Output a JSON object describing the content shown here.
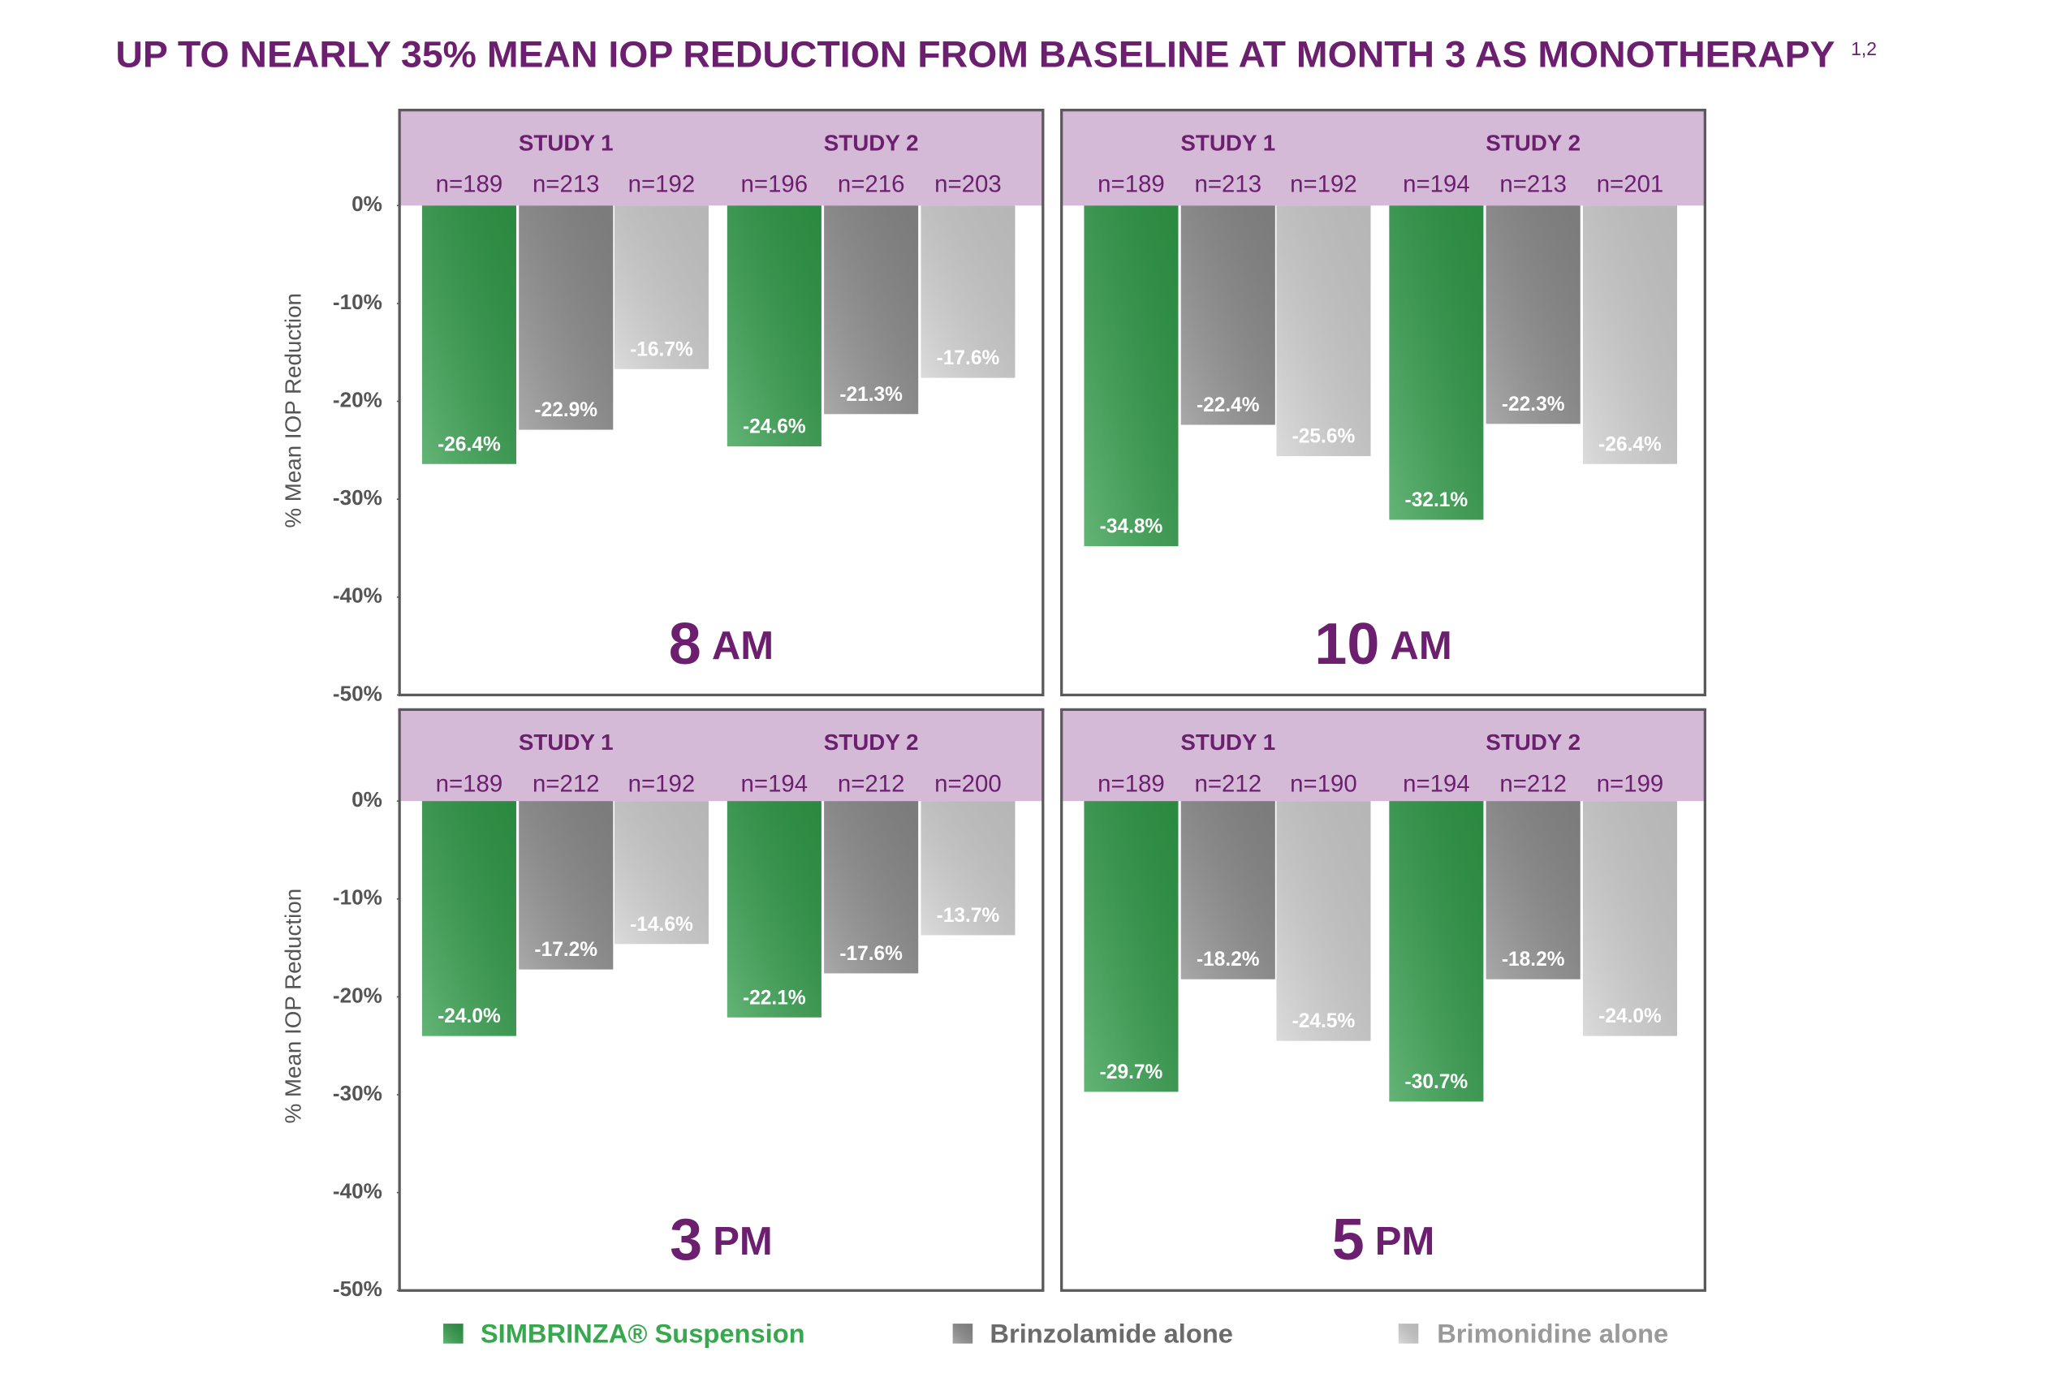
{
  "title": "UP TO NEARLY 35% MEAN IOP REDUCTION FROM BASELINE AT MONTH 3 AS MONOTHERAPY",
  "title_refs": "1,2",
  "legend": [
    {
      "name": "SIMBRINZA® Suspension",
      "color": "#2f9c48",
      "text_color": "#38a84f"
    },
    {
      "name": "Brinzolamide alone",
      "color": "#8c8c8c",
      "text_color": "#6b6b6b"
    },
    {
      "name": "Brimonidine alone",
      "color": "#cfcfcf",
      "text_color": "#9a9a9a"
    }
  ],
  "chart_data": [
    {
      "type": "bar",
      "time": "8",
      "period": "AM",
      "ylabel": "% Mean IOP Reduction",
      "ylim": [
        -50,
        0
      ],
      "yticks": [
        {
          "value": 0,
          "label": "0%"
        },
        {
          "value": -10,
          "label": "-10%"
        },
        {
          "value": -20,
          "label": "-20%"
        },
        {
          "value": -30,
          "label": "-30%"
        },
        {
          "value": -40,
          "label": "-40%"
        },
        {
          "value": -50,
          "label": "-50%"
        }
      ],
      "studies": [
        {
          "name": "STUDY 1",
          "n": [
            "n=189",
            "n=213",
            "n=192"
          ],
          "values": [
            -26.4,
            -22.9,
            -16.7
          ],
          "value_labels": [
            "-26.4%",
            "-22.9%",
            "-16.7%"
          ]
        },
        {
          "name": "STUDY 2",
          "n": [
            "n=196",
            "n=216",
            "n=203"
          ],
          "values": [
            -24.6,
            -21.3,
            -17.6
          ],
          "value_labels": [
            "-24.6%",
            "-21.3%",
            "-17.6%"
          ]
        }
      ]
    },
    {
      "type": "bar",
      "time": "10",
      "period": "AM",
      "ylim": [
        -50,
        0
      ],
      "studies": [
        {
          "name": "STUDY 1",
          "n": [
            "n=189",
            "n=213",
            "n=192"
          ],
          "values": [
            -34.8,
            -22.4,
            -25.6
          ],
          "value_labels": [
            "-34.8%",
            "-22.4%",
            "-25.6%"
          ]
        },
        {
          "name": "STUDY 2",
          "n": [
            "n=194",
            "n=213",
            "n=201"
          ],
          "values": [
            -32.1,
            -22.3,
            -26.4
          ],
          "value_labels": [
            "-32.1%",
            "-22.3%",
            "-26.4%"
          ]
        }
      ]
    },
    {
      "type": "bar",
      "time": "3",
      "period": "PM",
      "ylabel": "% Mean IOP Reduction",
      "ylim": [
        -50,
        0
      ],
      "yticks": [
        {
          "value": 0,
          "label": "0%"
        },
        {
          "value": -10,
          "label": "-10%"
        },
        {
          "value": -20,
          "label": "-20%"
        },
        {
          "value": -30,
          "label": "-30%"
        },
        {
          "value": -40,
          "label": "-40%"
        },
        {
          "value": -50,
          "label": "-50%"
        }
      ],
      "studies": [
        {
          "name": "STUDY 1",
          "n": [
            "n=189",
            "n=212",
            "n=192"
          ],
          "values": [
            -24.0,
            -17.2,
            -14.6
          ],
          "value_labels": [
            "-24.0%",
            "-17.2%",
            "-14.6%"
          ]
        },
        {
          "name": "STUDY 2",
          "n": [
            "n=194",
            "n=212",
            "n=200"
          ],
          "values": [
            -22.1,
            -17.6,
            -13.7
          ],
          "value_labels": [
            "-22.1%",
            "-17.6%",
            "-13.7%"
          ]
        }
      ]
    },
    {
      "type": "bar",
      "time": "5",
      "period": "PM",
      "ylim": [
        -50,
        0
      ],
      "studies": [
        {
          "name": "STUDY 1",
          "n": [
            "n=189",
            "n=212",
            "n=190"
          ],
          "values": [
            -29.7,
            -18.2,
            -24.5
          ],
          "value_labels": [
            "-29.7%",
            "-18.2%",
            "-24.5%"
          ]
        },
        {
          "name": "STUDY 2",
          "n": [
            "n=194",
            "n=212",
            "n=199"
          ],
          "values": [
            -30.7,
            -18.2,
            -24.0
          ],
          "value_labels": [
            "-30.7%",
            "-18.2%",
            "-24.0%"
          ]
        }
      ]
    }
  ]
}
